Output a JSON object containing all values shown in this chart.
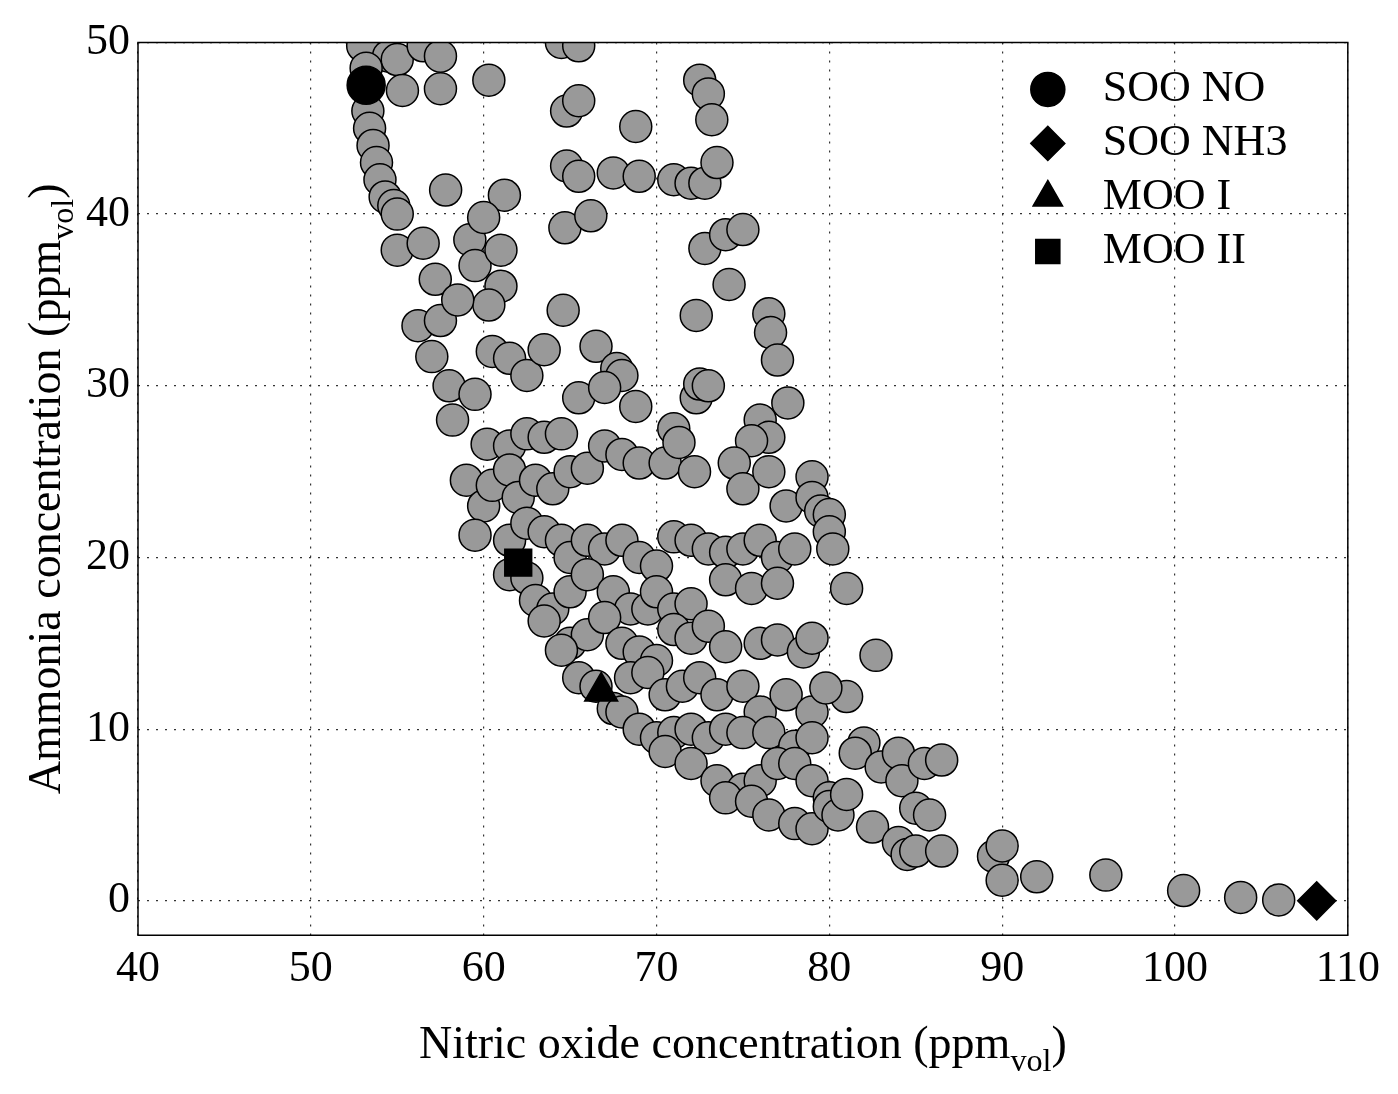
{
  "chart_data": {
    "type": "scatter",
    "xlabel": "Nitric oxide concentration (ppm$_{vol}$)",
    "ylabel": "Ammonia concentration (ppm$_{vol}$)",
    "xlim": [
      40,
      110
    ],
    "xticks": [
      40,
      50,
      60,
      70,
      80,
      90,
      100,
      110
    ],
    "ylim": [
      -2,
      50
    ],
    "yticks": [
      0,
      10,
      20,
      30,
      40,
      50
    ],
    "grid": true,
    "legend": "top right",
    "series": [
      {
        "color": "#999999",
        "marker": "circle",
        "x": [
          53,
          54.5,
          55,
          53.2,
          53.3,
          53.4,
          53.6,
          53.8,
          54,
          54.3,
          54.8,
          55,
          55.3,
          57.5,
          56.5,
          57.5,
          60.3,
          64.5,
          65.5,
          64.8,
          65.5,
          64.8,
          65.5,
          67.5,
          69,
          68.8,
          71,
          72,
          72.8,
          73.5,
          72.5,
          73,
          73.2,
          57.8,
          61.2,
          64.7,
          66.2,
          72.8,
          74,
          75,
          74.2,
          72.3,
          76.5,
          76.6,
          77,
          77.6,
          55,
          56.5,
          57.2,
          59.2,
          60,
          59.5,
          61,
          61,
          60.3,
          56.2,
          57.5,
          58.5,
          57,
          58,
          58.2,
          59.5,
          60.5,
          61.5,
          62.5,
          63.5,
          64.6,
          66.5,
          67.7,
          68,
          65.5,
          67,
          68.8,
          72.3,
          72.5,
          73,
          76,
          76.5,
          75.5,
          60.2,
          61.5,
          62.5,
          63.5,
          64.5,
          59,
          60,
          59.5,
          60.5,
          61.5,
          62,
          63,
          64,
          65,
          66,
          67,
          68,
          69,
          70.5,
          71,
          71.3,
          72.2,
          74.5,
          75,
          76.5,
          77.5,
          79,
          79,
          79.5,
          80,
          80,
          80.2,
          81,
          82.7,
          81,
          61.5,
          62.5,
          63.5,
          64.5,
          65,
          66,
          67,
          68,
          69,
          70,
          71,
          72,
          73,
          74,
          75,
          76,
          77,
          78,
          61.5,
          62.5,
          63,
          64,
          65,
          66,
          67.5,
          68.5,
          69.5,
          70,
          71,
          72,
          74,
          75.5,
          77,
          63.5,
          65,
          66,
          67,
          68,
          69,
          70,
          71,
          72,
          73,
          74,
          76,
          77,
          78.5,
          79,
          64.5,
          65.5,
          66.5,
          67.5,
          68.5,
          69.5,
          70.5,
          71.5,
          72.5,
          73.5,
          75,
          76,
          77.5,
          79,
          79.8,
          68,
          69,
          70,
          71,
          72,
          73,
          74,
          75,
          76.5,
          78,
          79,
          70.5,
          72,
          73.5,
          75,
          76,
          77,
          78,
          79,
          80,
          74,
          75.5,
          76.5,
          78,
          79,
          80,
          80.5,
          81,
          82,
          81.5,
          82.5,
          83,
          84,
          84.2,
          85.5,
          86.5,
          85,
          85.8,
          84,
          84.5,
          85,
          86.5,
          89.5,
          90,
          90,
          92,
          96,
          100.5,
          103.8,
          106
        ],
        "values": [
          49.8,
          49.2,
          49,
          48.5,
          46,
          45,
          44,
          43,
          42,
          41,
          40.5,
          40,
          47.2,
          47.3,
          49.8,
          49.2,
          47.8,
          50,
          49.8,
          46,
          46.6,
          42.8,
          42.2,
          42.4,
          42.2,
          45.1,
          42,
          41.8,
          41.8,
          43,
          47.8,
          47,
          45.5,
          41.4,
          41.1,
          39.2,
          39.9,
          38,
          38.8,
          39.1,
          35.9,
          34.1,
          34.2,
          33.1,
          31.5,
          29,
          37.9,
          38.3,
          36.2,
          38.5,
          39.8,
          37,
          37.9,
          35.8,
          34.7,
          33.5,
          33.8,
          35,
          31.7,
          30,
          28,
          29.5,
          32,
          31.6,
          30.6,
          32.1,
          34.4,
          32.3,
          31,
          30.6,
          29.3,
          29.9,
          28.8,
          29.3,
          30.1,
          30,
          28,
          27,
          26.8,
          26.6,
          26.5,
          27.2,
          27,
          27.2,
          24.5,
          23,
          21.3,
          24.2,
          25.1,
          23.5,
          24.5,
          24,
          25,
          25.2,
          26.5,
          26,
          25.5,
          25.5,
          27.5,
          26.7,
          25,
          25.5,
          24,
          25,
          23,
          24.7,
          23.5,
          22.7,
          22.5,
          21.5,
          20.5,
          18.2,
          14.3,
          11.9,
          21,
          22,
          21.5,
          21,
          20,
          21,
          20.5,
          21,
          20,
          19.5,
          21.2,
          21,
          20.5,
          20.3,
          20.5,
          21,
          20,
          20.5,
          19,
          18.8,
          17.5,
          17,
          18,
          19,
          18,
          17,
          17,
          18,
          17,
          17.3,
          18.7,
          18.2,
          18.5,
          16.3,
          15,
          15.5,
          16.5,
          15,
          14.5,
          14,
          15.8,
          15.3,
          16,
          14.8,
          15,
          15.2,
          14.5,
          15.3,
          14.6,
          13,
          12.5,
          11.2,
          13,
          13.3,
          12,
          12.5,
          13,
          12,
          12.5,
          11,
          12,
          11,
          12.4,
          11,
          10,
          9.5,
          9.8,
          10,
          9.5,
          10,
          9.8,
          9.8,
          9,
          9.5,
          8.7,
          8,
          7,
          6.5,
          7,
          8,
          8,
          7,
          6,
          6,
          5.8,
          5,
          4.5,
          4.2,
          5.5,
          5,
          6.2,
          9.2,
          8.6,
          4.3,
          7.8,
          8.6,
          7,
          8,
          8.2,
          5.4,
          5,
          3.4,
          2.7,
          2.9,
          2.9,
          2.6,
          3.2,
          1.2,
          1.4,
          1.5,
          0.6,
          0.2,
          0.05
        ]
      },
      {
        "name": "SOO NO",
        "color": "#000000",
        "marker": "circle",
        "x": [
          53.2
        ],
        "values": [
          47.5
        ]
      },
      {
        "name": "SOO NH3",
        "color": "#000000",
        "marker": "diamond",
        "x": [
          108.2
        ],
        "values": [
          0
        ]
      },
      {
        "name": "MOO I",
        "color": "#000000",
        "marker": "triangle",
        "x": [
          66.8
        ],
        "values": [
          12.2
        ]
      },
      {
        "name": "MOO II",
        "color": "#000000",
        "marker": "square",
        "x": [
          62
        ],
        "values": [
          19.7
        ]
      }
    ]
  }
}
